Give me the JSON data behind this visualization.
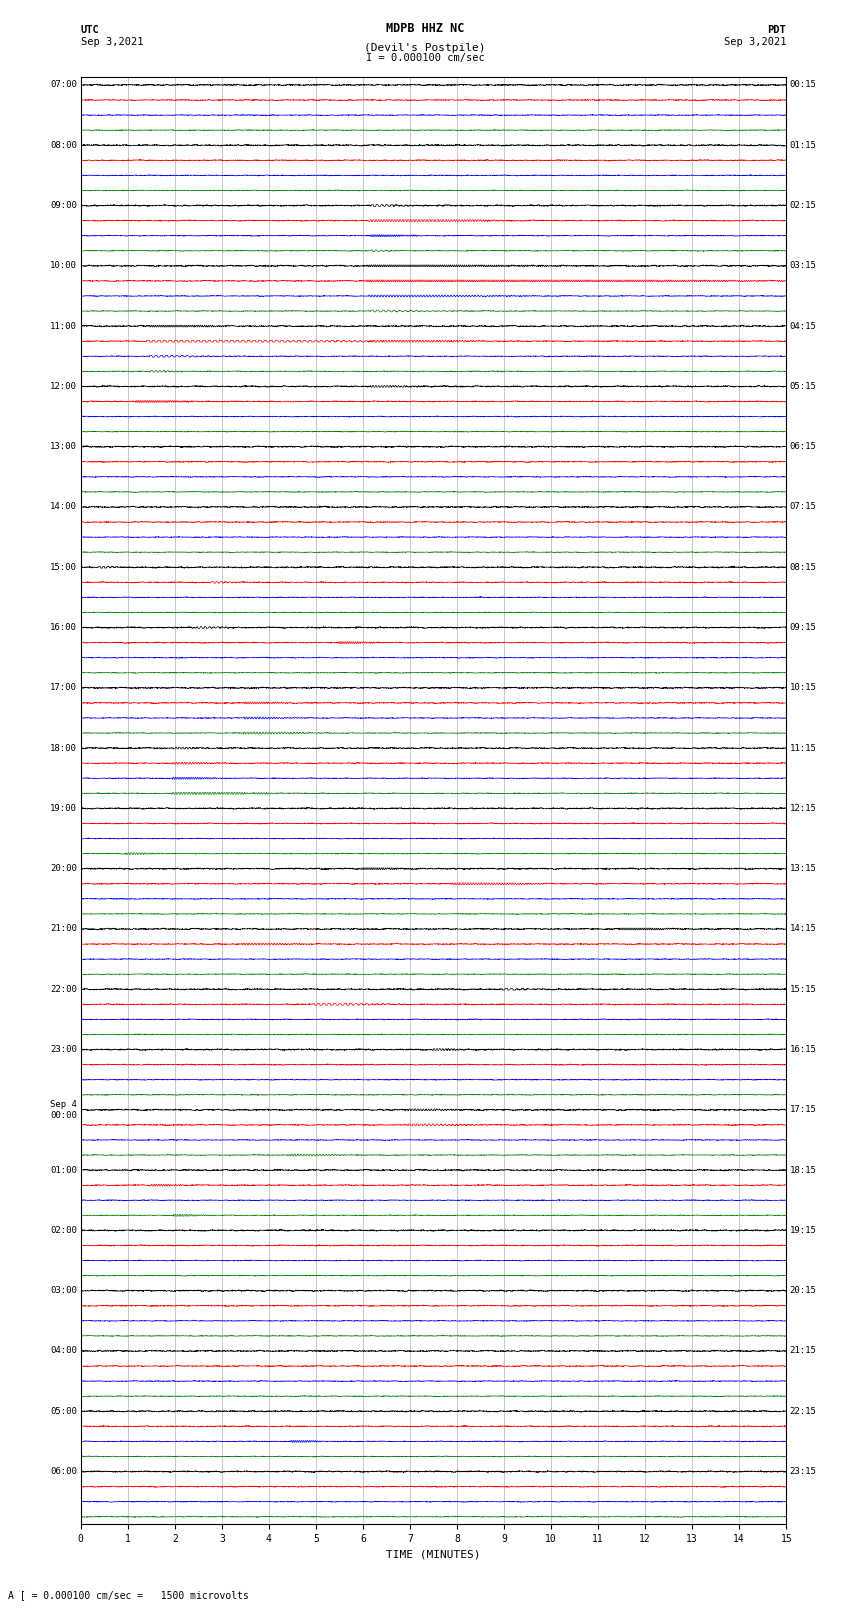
{
  "title_line1": "MDPB HHZ NC",
  "title_line2": "(Devil's Postpile)",
  "title_scale": "I = 0.000100 cm/sec",
  "utc_label": "UTC",
  "utc_date": "Sep 3,2021",
  "pdt_label": "PDT",
  "pdt_date": "Sep 3,2021",
  "xlabel": "TIME (MINUTES)",
  "bottom_note": "A [ = 0.000100 cm/sec =   1500 microvolts",
  "fig_width": 8.5,
  "fig_height": 16.13,
  "dpi": 100,
  "bg_color": "#ffffff",
  "trace_colors": [
    "black",
    "red",
    "blue",
    "green"
  ],
  "xmin": 0,
  "xmax": 15,
  "num_hours": 24,
  "traces_per_row": 4,
  "noise_seed": 12345,
  "utc_labels": [
    "07:00",
    "08:00",
    "09:00",
    "10:00",
    "11:00",
    "12:00",
    "13:00",
    "14:00",
    "15:00",
    "16:00",
    "17:00",
    "18:00",
    "19:00",
    "20:00",
    "21:00",
    "22:00",
    "23:00",
    "Sep 4\n00:00",
    "01:00",
    "02:00",
    "03:00",
    "04:00",
    "05:00",
    "06:00"
  ],
  "pdt_labels": [
    "00:15",
    "01:15",
    "02:15",
    "03:15",
    "04:15",
    "05:15",
    "06:15",
    "07:15",
    "08:15",
    "09:15",
    "10:15",
    "11:15",
    "12:15",
    "13:15",
    "14:15",
    "15:15",
    "16:15",
    "17:15",
    "18:15",
    "19:15",
    "20:15",
    "21:15",
    "22:15",
    "23:15"
  ]
}
